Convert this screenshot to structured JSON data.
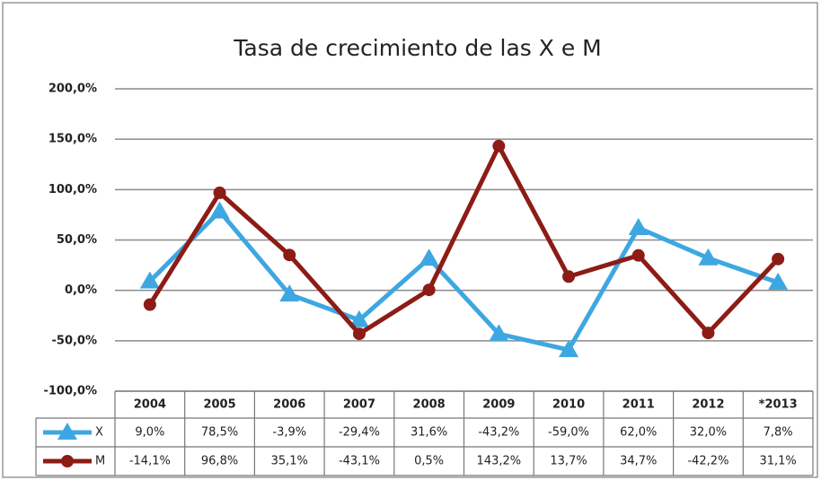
{
  "chart_data": {
    "type": "line",
    "title": "Tasa de crecimiento de las X e M",
    "categories": [
      "2004",
      "2005",
      "2006",
      "2007",
      "2008",
      "2009",
      "2010",
      "2011",
      "2012",
      "*2013"
    ],
    "series": [
      {
        "name": "X",
        "color": "#3ea7e1",
        "marker": "triangle",
        "values": [
          9.0,
          78.5,
          -3.9,
          -29.4,
          31.6,
          -43.2,
          -59.0,
          62.0,
          32.0,
          7.8
        ],
        "value_labels": [
          "9,0%",
          "78,5%",
          "-3,9%",
          "-29,4%",
          "31,6%",
          "-43,2%",
          "-59,0%",
          "62,0%",
          "32,0%",
          "7,8%"
        ]
      },
      {
        "name": "M",
        "color": "#8c1c15",
        "marker": "circle",
        "values": [
          -14.1,
          96.8,
          35.1,
          -43.1,
          0.5,
          143.2,
          13.7,
          34.7,
          -42.2,
          31.1
        ],
        "value_labels": [
          "-14,1%",
          "96,8%",
          "35,1%",
          "-43,1%",
          "0,5%",
          "143,2%",
          "13,7%",
          "34,7%",
          "-42,2%",
          "31,1%"
        ]
      }
    ],
    "ylim": [
      -100,
      200
    ],
    "yticks": [
      {
        "value": -100,
        "label": "-100,0%"
      },
      {
        "value": -50,
        "label": "-50,0%"
      },
      {
        "value": 0,
        "label": "0,0%"
      },
      {
        "value": 50,
        "label": "50,0%"
      },
      {
        "value": 100,
        "label": "100,0%"
      },
      {
        "value": 150,
        "label": "150,0%"
      },
      {
        "value": 200,
        "label": "200,0%"
      }
    ],
    "grid": true
  }
}
